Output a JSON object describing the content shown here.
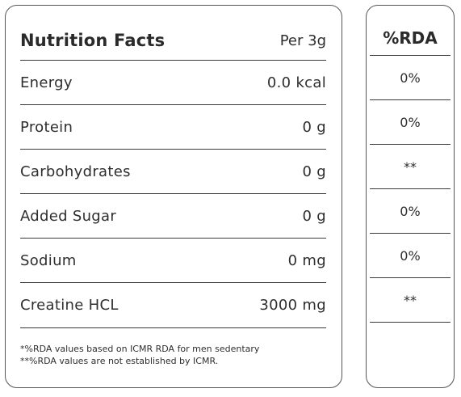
{
  "facts": {
    "title": "Nutrition Facts",
    "per": "Per 3g",
    "rows": [
      {
        "name": "Energy",
        "value": "0.0 kcal"
      },
      {
        "name": "Protein",
        "value": "0 g"
      },
      {
        "name": "Carbohydrates",
        "value": "0 g"
      },
      {
        "name": "Added Sugar",
        "value": "0 g"
      },
      {
        "name": "Sodium",
        "value": "0 mg"
      },
      {
        "name": "Creatine HCL",
        "value": "3000 mg"
      }
    ],
    "footnotes": [
      "*%RDA values based on ICMR RDA for men sedentary",
      "**%RDA values are not established by ICMR."
    ]
  },
  "rda": {
    "header": "%RDA",
    "values": [
      "0%",
      "0%",
      "**",
      "0%",
      "0%",
      "**"
    ]
  }
}
